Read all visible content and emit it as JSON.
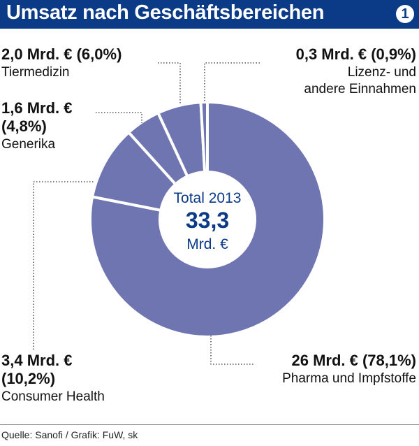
{
  "header": {
    "title": "Umsatz nach Geschäftsbereichen",
    "badge": "1"
  },
  "center": {
    "line1": "Total 2013",
    "value": "33,3",
    "unit": "Mrd. €"
  },
  "source": "Quelle: Sanofi / Grafik: FuW, sk",
  "colors": {
    "header": "#0b3a87",
    "slice": "#6e75b0",
    "center_text": "#0b3a87"
  },
  "chart_data": {
    "type": "pie",
    "donut": true,
    "total": 33.3,
    "slices": [
      {
        "name": "Pharma und Impfstoffe",
        "value": 26,
        "percent": 78.1,
        "label": "26 Mrd. € (78,1%)"
      },
      {
        "name": "Consumer Health",
        "value": 3.4,
        "percent": 10.2,
        "label": "3,4 Mrd. € (10,2%)"
      },
      {
        "name": "Generika",
        "value": 1.6,
        "percent": 4.8,
        "label": "1,6 Mrd. € (4,8%)"
      },
      {
        "name": "Tiermedizin",
        "value": 2.0,
        "percent": 6.0,
        "label": "2,0 Mrd. € (6,0%)"
      },
      {
        "name": "Lizenz- und andere Einnahmen",
        "value": 0.3,
        "percent": 0.9,
        "label": "0,3 Mrd. € (0,9%)"
      }
    ]
  },
  "labels": {
    "tier": {
      "value": "2,0 Mrd. € (6,0%)",
      "name": "Tiermedizin"
    },
    "lizenz": {
      "value": "0,3 Mrd. € (0,9%)",
      "name1": "Lizenz- und",
      "name2": "andere Einnahmen"
    },
    "generika": {
      "value1": "1,6 Mrd. €",
      "value2": "(4,8%)",
      "name": "Generika"
    },
    "consumer": {
      "value1": "3,4 Mrd. €",
      "value2": "(10,2%)",
      "name": "Consumer Health"
    },
    "pharma": {
      "value": "26 Mrd. € (78,1%)",
      "name": "Pharma und Impfstoffe"
    }
  }
}
